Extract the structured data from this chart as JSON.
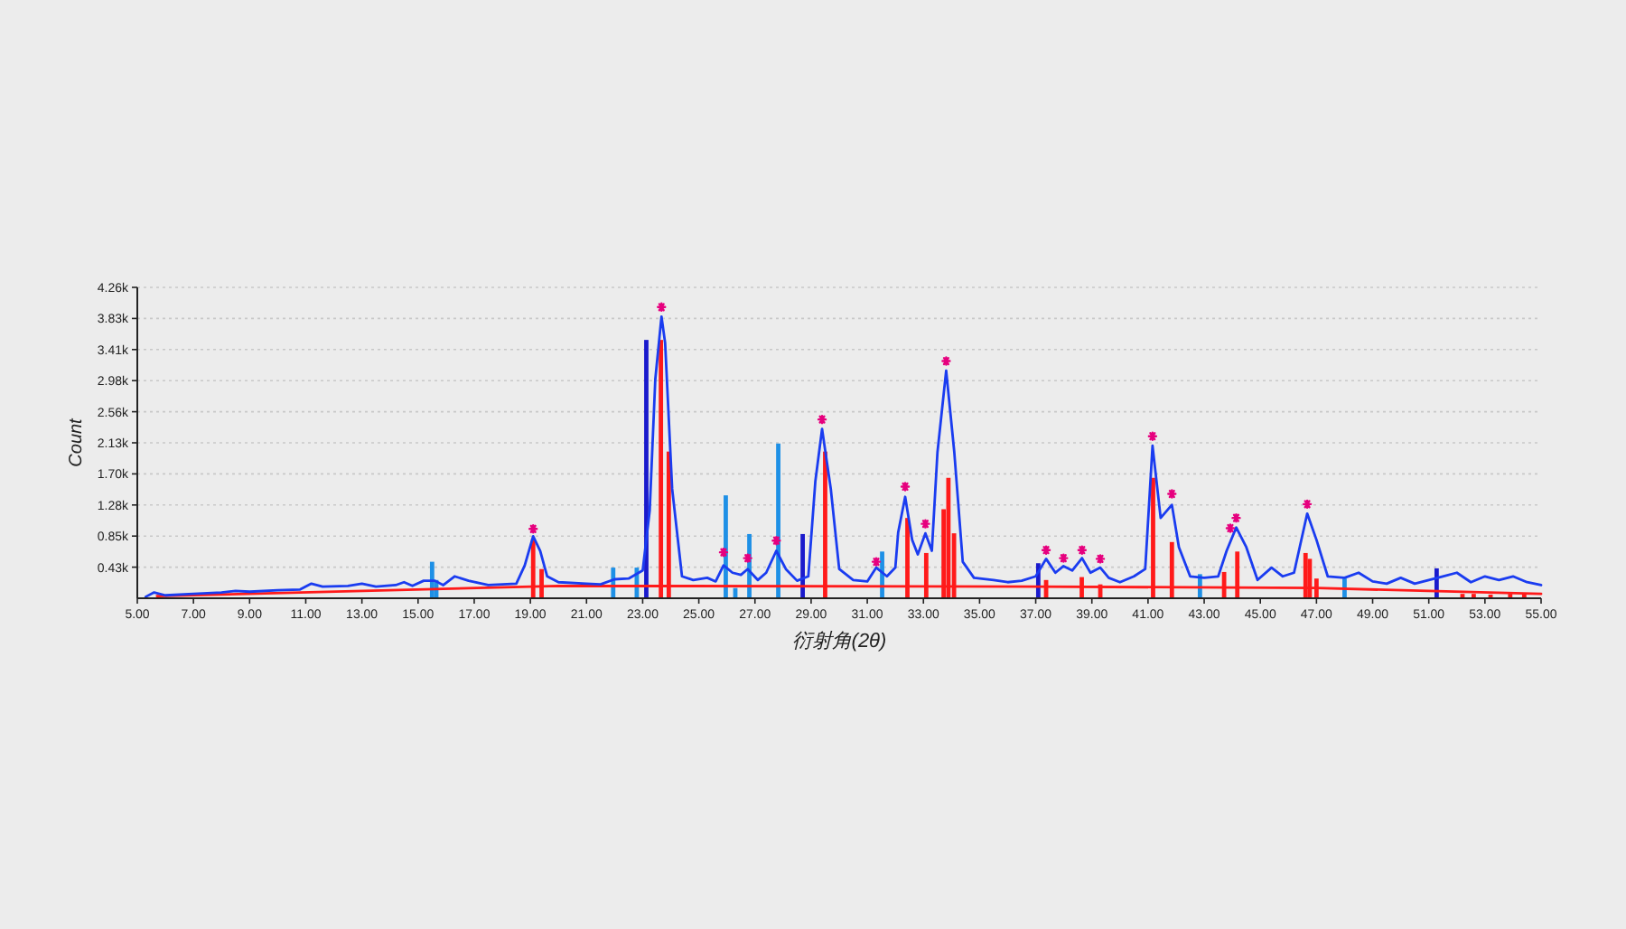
{
  "chart_data": {
    "type": "line",
    "xlabel": "衍射角(2θ)",
    "ylabel": "Count",
    "xlim": [
      5,
      55
    ],
    "ylim": [
      0,
      4260
    ],
    "xticks": [
      {
        "value": 5,
        "label": "5.00"
      },
      {
        "value": 7,
        "label": "7.00"
      },
      {
        "value": 9,
        "label": "9.00"
      },
      {
        "value": 11,
        "label": "11.00"
      },
      {
        "value": 13,
        "label": "13.00"
      },
      {
        "value": 15,
        "label": "15.00"
      },
      {
        "value": 17,
        "label": "17.00"
      },
      {
        "value": 19,
        "label": "19.00"
      },
      {
        "value": 21,
        "label": "21.00"
      },
      {
        "value": 23,
        "label": "23.00"
      },
      {
        "value": 25,
        "label": "25.00"
      },
      {
        "value": 27,
        "label": "27.00"
      },
      {
        "value": 29,
        "label": "29.00"
      },
      {
        "value": 31,
        "label": "31.00"
      },
      {
        "value": 33,
        "label": "33.00"
      },
      {
        "value": 35,
        "label": "35.00"
      },
      {
        "value": 37,
        "label": "37.00"
      },
      {
        "value": 39,
        "label": "39.00"
      },
      {
        "value": 41,
        "label": "41.00"
      },
      {
        "value": 43,
        "label": "43.00"
      },
      {
        "value": 45,
        "label": "45.00"
      },
      {
        "value": 47,
        "label": "47.00"
      },
      {
        "value": 49,
        "label": "49.00"
      },
      {
        "value": 51,
        "label": "51.00"
      },
      {
        "value": 53,
        "label": "53.00"
      },
      {
        "value": 55,
        "label": "55.00"
      }
    ],
    "yticks": [
      {
        "value": 426,
        "label": "0.43k"
      },
      {
        "value": 852,
        "label": "0.85k"
      },
      {
        "value": 1278,
        "label": "1.28k"
      },
      {
        "value": 1704,
        "label": "1.70k"
      },
      {
        "value": 2130,
        "label": "2.13k"
      },
      {
        "value": 2556,
        "label": "2.56k"
      },
      {
        "value": 2982,
        "label": "2.98k"
      },
      {
        "value": 3408,
        "label": "3.41k"
      },
      {
        "value": 3834,
        "label": "3.83k"
      },
      {
        "value": 4260,
        "label": "4.26k"
      }
    ],
    "grid": "y",
    "series": [
      {
        "type": "bar",
        "color": "#1e90e6",
        "x": [
          15.5,
          15.65,
          21.95,
          22.79,
          25.96,
          26.3,
          26.8,
          27.83,
          31.53,
          42.85,
          48.0
        ],
        "values": [
          500,
          250,
          420,
          420,
          1410,
          140,
          880,
          2120,
          640,
          330,
          270
        ]
      },
      {
        "type": "bar",
        "color": "#1a1acc",
        "x": [
          23.13,
          28.7,
          37.09,
          51.28
        ],
        "values": [
          3540,
          880,
          480,
          410
        ]
      },
      {
        "type": "bar",
        "color": "#ff1a1a",
        "x": [
          19.1,
          19.4,
          23.65,
          23.93,
          29.5,
          32.43,
          33.1,
          33.72,
          33.89,
          34.09,
          37.37,
          38.64,
          39.3,
          41.18,
          41.85,
          43.71,
          44.18,
          46.61,
          46.76,
          47.0,
          52.2,
          52.6,
          53.2,
          53.9,
          54.4
        ],
        "values": [
          810,
          400,
          3540,
          2010,
          2010,
          1100,
          620,
          1220,
          1650,
          890,
          250,
          290,
          190,
          1650,
          770,
          360,
          640,
          620,
          540,
          270,
          60,
          60,
          50,
          60,
          60
        ]
      },
      {
        "type": "line",
        "color": "#ff1a1a",
        "x": [
          5.7,
          20,
          37,
          47,
          55
        ],
        "values": [
          30,
          170,
          160,
          140,
          60
        ]
      },
      {
        "color": "#1a3cf0",
        "x": [
          5.3,
          5.6,
          6.0,
          7.0,
          8.0,
          8.5,
          9.0,
          10.0,
          10.8,
          11.2,
          11.6,
          12.5,
          13.0,
          13.5,
          14.2,
          14.5,
          14.8,
          15.2,
          15.6,
          15.9,
          16.3,
          16.8,
          17.5,
          18.0,
          18.5,
          18.8,
          19.1,
          19.35,
          19.6,
          20.0,
          21.0,
          21.5,
          22.0,
          22.5,
          23.0,
          23.25,
          23.45,
          23.67,
          23.8,
          24.05,
          24.4,
          24.8,
          25.3,
          25.6,
          25.88,
          26.2,
          26.5,
          26.74,
          27.1,
          27.4,
          27.76,
          28.1,
          28.5,
          28.9,
          29.15,
          29.39,
          29.7,
          30.0,
          30.5,
          31.0,
          31.32,
          31.7,
          32.0,
          32.1,
          32.35,
          32.6,
          32.8,
          33.07,
          33.3,
          33.5,
          33.81,
          34.1,
          34.4,
          34.8,
          35.5,
          36.0,
          36.5,
          37.0,
          37.37,
          37.7,
          37.99,
          38.3,
          38.65,
          38.95,
          39.3,
          39.6,
          40.0,
          40.5,
          40.9,
          41.16,
          41.45,
          41.85,
          42.1,
          42.5,
          43.0,
          43.5,
          43.8,
          44.14,
          44.5,
          44.9,
          45.4,
          45.8,
          46.2,
          46.67,
          47.0,
          47.4,
          48.0,
          48.5,
          49.0,
          49.5,
          50.0,
          50.5,
          51.0,
          51.5,
          52.0,
          52.5,
          53.0,
          53.5,
          54.0,
          54.5,
          55.0
        ],
        "values": [
          20,
          80,
          40,
          60,
          80,
          100,
          90,
          110,
          120,
          200,
          160,
          170,
          200,
          160,
          180,
          220,
          170,
          240,
          240,
          180,
          300,
          240,
          180,
          190,
          200,
          450,
          850,
          650,
          300,
          220,
          200,
          190,
          260,
          270,
          380,
          1200,
          3000,
          3860,
          3500,
          1500,
          300,
          250,
          280,
          230,
          450,
          350,
          320,
          400,
          250,
          350,
          650,
          400,
          240,
          300,
          1600,
          2320,
          1500,
          400,
          250,
          230,
          420,
          300,
          420,
          900,
          1390,
          800,
          600,
          890,
          650,
          2000,
          3120,
          2000,
          500,
          280,
          250,
          220,
          240,
          300,
          540,
          350,
          440,
          380,
          550,
          350,
          420,
          280,
          220,
          300,
          400,
          2090,
          1100,
          1280,
          700,
          300,
          280,
          300,
          650,
          970,
          700,
          250,
          420,
          300,
          350,
          1160,
          800,
          300,
          280,
          350,
          230,
          200,
          280,
          200,
          250,
          300,
          350,
          220,
          300,
          250,
          300,
          220,
          180
        ]
      },
      {
        "type": "scatter",
        "marker": "cross",
        "color": "#e6007e",
        "x": [
          19.1,
          23.67,
          25.88,
          26.74,
          27.76,
          29.39,
          31.32,
          32.35,
          33.07,
          33.81,
          37.37,
          37.99,
          38.65,
          39.3,
          41.16,
          41.85,
          43.93,
          44.14,
          46.67
        ],
        "values": [
          950,
          3990,
          630,
          550,
          790,
          2450,
          500,
          1530,
          1020,
          3250,
          660,
          550,
          660,
          540,
          2220,
          1430,
          960,
          1100,
          1290
        ]
      }
    ]
  }
}
